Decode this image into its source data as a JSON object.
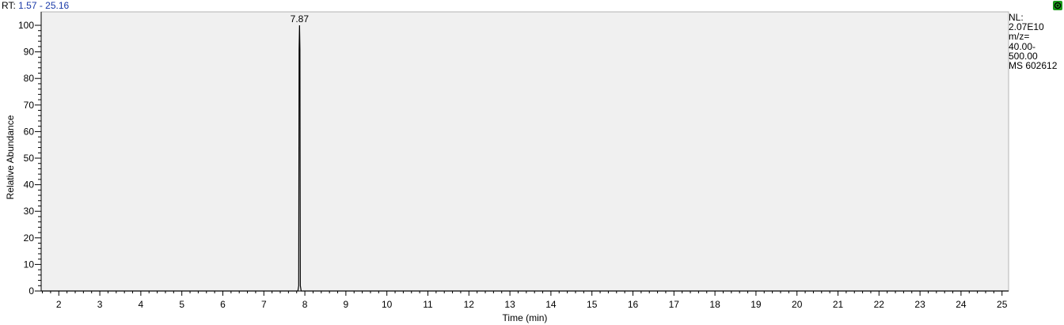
{
  "header": {
    "rt_label": "RT:",
    "rt_range": "1.57 - 25.16"
  },
  "info_panel": {
    "lines": [
      "NL:",
      "2.07E10",
      "m/z=",
      "40.00-",
      "500.00",
      "MS 602612"
    ]
  },
  "link_icon": {
    "name": "link-icon",
    "color": "#1b9a1b"
  },
  "chart_data": {
    "type": "line",
    "title": "",
    "xlabel": "Time (min)",
    "ylabel": "Relative Abundance",
    "xlim": [
      1.57,
      25.16
    ],
    "ylim": [
      0,
      100
    ],
    "x_ticks": [
      2,
      3,
      4,
      5,
      6,
      7,
      8,
      9,
      10,
      11,
      12,
      13,
      14,
      15,
      16,
      17,
      18,
      19,
      20,
      21,
      22,
      23,
      24,
      25
    ],
    "y_ticks": [
      0,
      10,
      20,
      30,
      40,
      50,
      60,
      70,
      80,
      90,
      100
    ],
    "grid": false,
    "plot_background": "#f0f0f0",
    "series": [
      {
        "line_color": "#000000",
        "x": [
          1.57,
          7.83,
          7.85,
          7.86,
          7.87,
          7.88,
          7.89,
          7.91,
          25.16
        ],
        "y": [
          0,
          0,
          2,
          91,
          100,
          91,
          2,
          0,
          0
        ]
      }
    ],
    "annotations": [
      {
        "x": 7.87,
        "y": 100,
        "text": "7.87"
      }
    ]
  }
}
